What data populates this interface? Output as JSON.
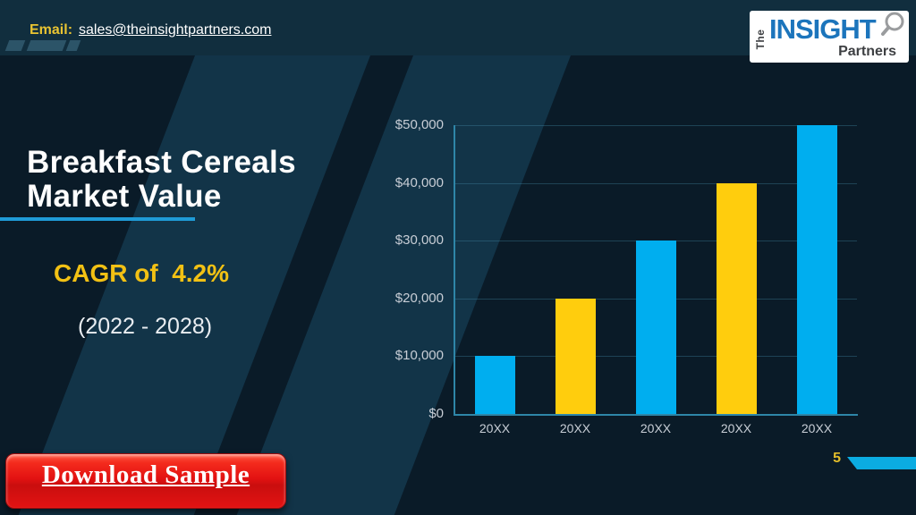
{
  "header": {
    "email_label": "Email:",
    "email_address": "sales@theinsightpartners.com",
    "logo": {
      "the": "The",
      "insight": "INSIGHT",
      "partners": "Partners"
    }
  },
  "main": {
    "title": "Breakfast Cereals Market Value",
    "cagr": "CAGR of  4.2%",
    "period": "(2022 - 2028)"
  },
  "chart_data": {
    "type": "bar",
    "title": "Breakfast Cereals Market Value",
    "categories": [
      "20XX",
      "20XX",
      "20XX",
      "20XX",
      "20XX"
    ],
    "values": [
      10000,
      20000,
      30000,
      40000,
      50000
    ],
    "bar_colors": [
      "#00AEEF",
      "#FFCD0D",
      "#00AEEF",
      "#FFCD0D",
      "#00AEEF"
    ],
    "ylim": [
      0,
      50000
    ],
    "ytick_values": [
      0,
      10000,
      20000,
      30000,
      40000,
      50000
    ],
    "ytick_labels": [
      "$0",
      "$10,000",
      "$20,000",
      "$30,000",
      "$40,000",
      "$50,000"
    ],
    "xlabel": "",
    "ylabel": "",
    "grid": true,
    "legend": false
  },
  "footer": {
    "download_button": "Download Sample",
    "page_number": "5"
  },
  "colors": {
    "accent_cyan": "#1F9BD7",
    "bar_blue": "#00AEEF",
    "bar_yellow": "#FFCD0D",
    "cagr_yellow": "#F2C114",
    "button_red": "#E31212",
    "logo_blue": "#1C75BC",
    "axis_teal": "#2E86A8"
  }
}
